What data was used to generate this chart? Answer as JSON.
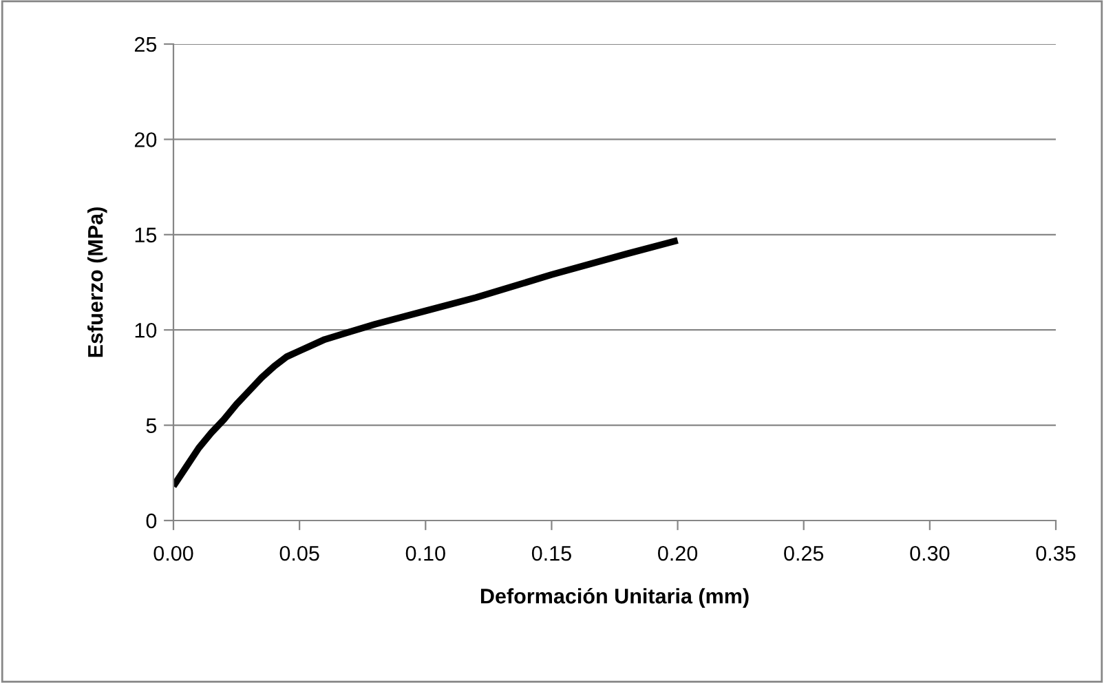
{
  "chart_data": {
    "type": "line",
    "xlabel": "Deformación Unitaria (mm)",
    "ylabel": "Esfuerzo (MPa)",
    "series": [
      {
        "color": "#000000",
        "x": [
          0,
          0.005,
          0.01,
          0.015,
          0.02,
          0.025,
          0.03,
          0.035,
          0.04,
          0.045,
          0.05,
          0.06,
          0.07,
          0.08,
          0.1,
          0.12,
          0.15,
          0.18,
          0.2
        ],
        "values": [
          1.8,
          2.8,
          3.8,
          4.6,
          5.3,
          6.1,
          6.8,
          7.5,
          8.1,
          8.6,
          8.9,
          9.5,
          9.9,
          10.3,
          11.0,
          11.7,
          12.9,
          14.0,
          14.7
        ]
      }
    ],
    "xlim": [
      0,
      0.35
    ],
    "xticks": [
      {
        "value": 0,
        "label": "0.00"
      },
      {
        "value": 0.05,
        "label": "0.05"
      },
      {
        "value": 0.1,
        "label": "0.10"
      },
      {
        "value": 0.15,
        "label": "0.15"
      },
      {
        "value": 0.2,
        "label": "0.20"
      },
      {
        "value": 0.25,
        "label": "0.25"
      },
      {
        "value": 0.3,
        "label": "0.30"
      },
      {
        "value": 0.35,
        "label": "0.35"
      }
    ],
    "ylim": [
      0,
      25
    ],
    "yticks": [
      0,
      5,
      10,
      15,
      20,
      25
    ],
    "grid": "y",
    "marker": "none",
    "line_style": "solid",
    "legend": false
  }
}
